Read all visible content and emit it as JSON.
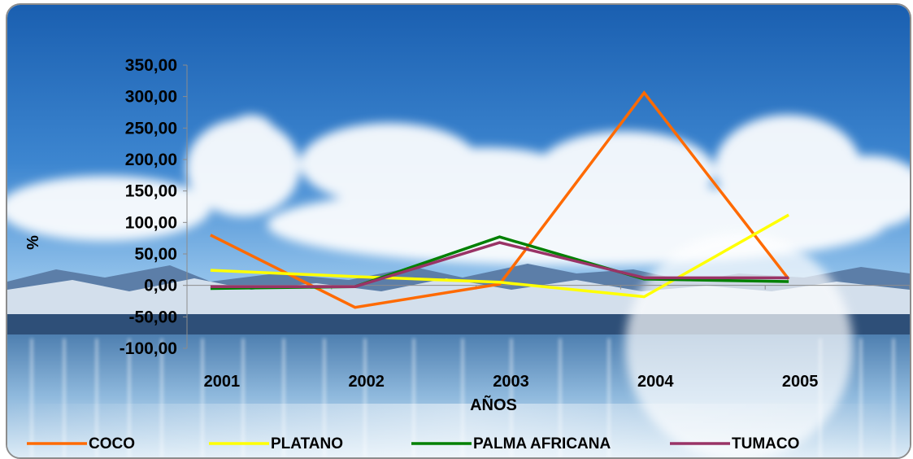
{
  "chart_data": {
    "type": "line",
    "title": "",
    "xlabel": "AÑOS",
    "ylabel": "%",
    "categories": [
      "2001",
      "2002",
      "2003",
      "2004",
      "2005"
    ],
    "ylim": [
      -100,
      350
    ],
    "yticks": [
      350,
      300,
      250,
      200,
      150,
      100,
      50,
      0,
      -50,
      -100
    ],
    "ytick_labels": [
      "350,00",
      "300,00",
      "250,00",
      "200,00",
      "150,00",
      "100,00",
      "50,00",
      "0,00",
      "-50,00",
      "-100,00"
    ],
    "legend_position": "bottom",
    "grid": false,
    "series": [
      {
        "name": "COCO",
        "color": "#ff6a00",
        "values": [
          80,
          -35,
          2,
          306,
          10
        ]
      },
      {
        "name": "PLATANO",
        "color": "#ffff00",
        "values": [
          24,
          14,
          5,
          -18,
          112
        ]
      },
      {
        "name": "PALMA AFRICANA",
        "color": "#008000",
        "values": [
          -5,
          -2,
          77,
          10,
          6
        ]
      },
      {
        "name": "TUMACO",
        "color": "#993366",
        "values": [
          -2,
          -2,
          68,
          12,
          12
        ]
      }
    ]
  }
}
